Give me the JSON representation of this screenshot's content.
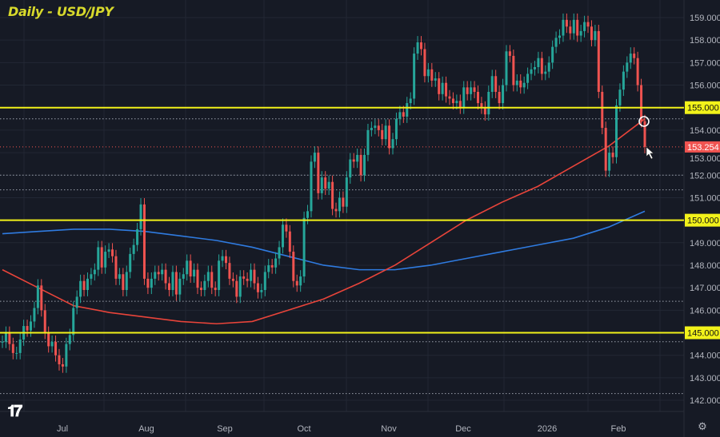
{
  "chart_data": {
    "type": "candlestick",
    "title": "Daily - USD/JPY",
    "ylim": [
      141.6,
      159.8
    ],
    "y_ticks": [
      142,
      143,
      144,
      145,
      146,
      147,
      148,
      149,
      150,
      151,
      152,
      153,
      154,
      155,
      156,
      157,
      158,
      159
    ],
    "x_ticks": [
      "Jul",
      "Aug",
      "Sep",
      "Oct",
      "Nov",
      "Dec",
      "2026",
      "Feb"
    ],
    "grid": true,
    "colors": {
      "background": "#161a25",
      "up": "#26a69a",
      "down": "#ef5350",
      "levels": "#f2f21a",
      "ma_fast": "#e8443a",
      "ma_slow": "#2f7be0",
      "grid": "#222734",
      "axis_text": "#b2b5be"
    },
    "closes": [
      144.6,
      145.0,
      144.5,
      144.1,
      144.1,
      144.7,
      145.3,
      145.1,
      145.5,
      146.1,
      147.1,
      146.0,
      145.0,
      144.4,
      144.6,
      144.0,
      143.6,
      143.5,
      144.5,
      144.9,
      146.1,
      146.6,
      147.3,
      146.9,
      147.4,
      147.6,
      147.8,
      148.8,
      147.9,
      148.6,
      148.7,
      148.4,
      147.4,
      147.6,
      146.9,
      147.7,
      148.5,
      148.9,
      149.6,
      150.7,
      147.4,
      147.0,
      147.4,
      147.7,
      147.6,
      147.8,
      147.2,
      146.9,
      147.7,
      146.7,
      147.4,
      147.6,
      148.2,
      147.5,
      147.8,
      147.0,
      146.9,
      147.3,
      147.7,
      147.0,
      146.9,
      148.2,
      148.4,
      148.1,
      147.4,
      147.3,
      146.6,
      147.5,
      147.4,
      147.3,
      147.8,
      147.2,
      146.8,
      146.9,
      147.7,
      148.0,
      147.9,
      148.3,
      148.8,
      149.8,
      149.5,
      148.6,
      147.3,
      147.1,
      147.5,
      150.1,
      150.4,
      152.6,
      153.0,
      151.2,
      151.9,
      151.4,
      151.7,
      150.5,
      150.4,
      151.0,
      150.6,
      151.9,
      152.7,
      152.6,
      152.9,
      152.0,
      152.9,
      154.0,
      154.1,
      154.2,
      154.0,
      153.6,
      154.2,
      153.2,
      153.6,
      154.5,
      154.8,
      154.6,
      155.2,
      155.4,
      157.4,
      157.9,
      157.6,
      156.4,
      156.7,
      156.2,
      156.3,
      155.6,
      156.1,
      155.5,
      155.4,
      155.2,
      155.3,
      155.0,
      155.9,
      155.6,
      155.9,
      155.7,
      155.2,
      155.0,
      154.7,
      155.7,
      156.4,
      155.7,
      155.2,
      156.0,
      157.5,
      157.3,
      156.0,
      156.2,
      155.9,
      156.1,
      156.5,
      156.7,
      156.8,
      157.2,
      156.5,
      156.6,
      157.0,
      157.7,
      158.1,
      158.2,
      158.9,
      158.6,
      158.3,
      158.9,
      158.2,
      158.4,
      158.8,
      158.6,
      158.0,
      158.4,
      155.7,
      154.1,
      152.2,
      153.0,
      152.8,
      155.1,
      155.8,
      156.6,
      157.0,
      157.4,
      157.2,
      156.0,
      154.4,
      153.254
    ],
    "ma_fast": [
      147.8,
      147.0,
      146.2,
      145.9,
      145.7,
      145.5,
      145.4,
      145.5,
      146.0,
      146.5,
      147.2,
      148.0,
      149.0,
      150.0,
      150.8,
      151.5,
      152.4,
      153.3,
      154.5
    ],
    "ma_slow": [
      149.4,
      149.5,
      149.6,
      149.6,
      149.5,
      149.3,
      149.1,
      148.8,
      148.4,
      148.0,
      147.8,
      147.8,
      148.0,
      148.3,
      148.6,
      148.9,
      149.2,
      149.7,
      150.4
    ],
    "horizontal_levels": [
      {
        "value": 155.0,
        "label": "155.000"
      },
      {
        "value": 150.0,
        "label": "150.000"
      },
      {
        "value": 145.0,
        "label": "145.000"
      }
    ],
    "dotted_levels": [
      154.5,
      152.0,
      151.35,
      146.4,
      144.6,
      142.3
    ],
    "last_price": {
      "value": 153.254,
      "label": "153.254"
    }
  },
  "logo": "TV",
  "settings_icon": "gear-icon"
}
